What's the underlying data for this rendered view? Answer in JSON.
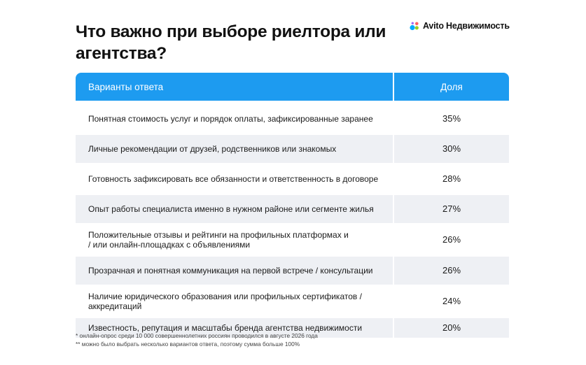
{
  "title": "Что важно при выборе риелтора или агентства?",
  "logo": {
    "text": "Avito Недвижимость",
    "icon": "avito-dots-logo",
    "colors": [
      "#00aaff",
      "#97cf26",
      "#ff6163",
      "#a169f7"
    ]
  },
  "colors": {
    "header": "#1d9bf0",
    "row_shade": "#eef0f4"
  },
  "chart_data": {
    "type": "table",
    "columns": [
      "Варианты ответа",
      "Доля"
    ],
    "rows": [
      {
        "option": "Понятная стоимость услуг и порядок оплаты, зафиксированные заранее",
        "share": "35%",
        "value": 35
      },
      {
        "option": "Личные рекомендации от друзей, родственников или знакомых",
        "share": "30%",
        "value": 30
      },
      {
        "option": "Готовность зафиксировать все обязанности и ответственность в договоре",
        "share": "28%",
        "value": 28
      },
      {
        "option": "Опыт работы специалиста именно в нужном районе или сегменте жилья",
        "share": "27%",
        "value": 27
      },
      {
        "option": "Положительные отзывы и рейтинги на профильных платформах и / или онлайн-площадках с объявлениями",
        "share": "26%",
        "value": 26
      },
      {
        "option": "Прозрачная и понятная коммуникация на первой встрече / консультации",
        "share": "26%",
        "value": 26
      },
      {
        "option": "Наличие юридического образования или профильных сертификатов / аккредитаций",
        "share": "24%",
        "value": 24
      },
      {
        "option": "Известность, репутация и масштабы бренда агентства недвижимости",
        "share": "20%",
        "value": 20
      }
    ]
  },
  "footnotes": [
    "* онлайн-опрос среди 10 000 совершеннолетних россиян проводился в августе 2026 года",
    "** можно было выбрать несколько вариантов ответа, поэтому сумма больше 100%"
  ]
}
